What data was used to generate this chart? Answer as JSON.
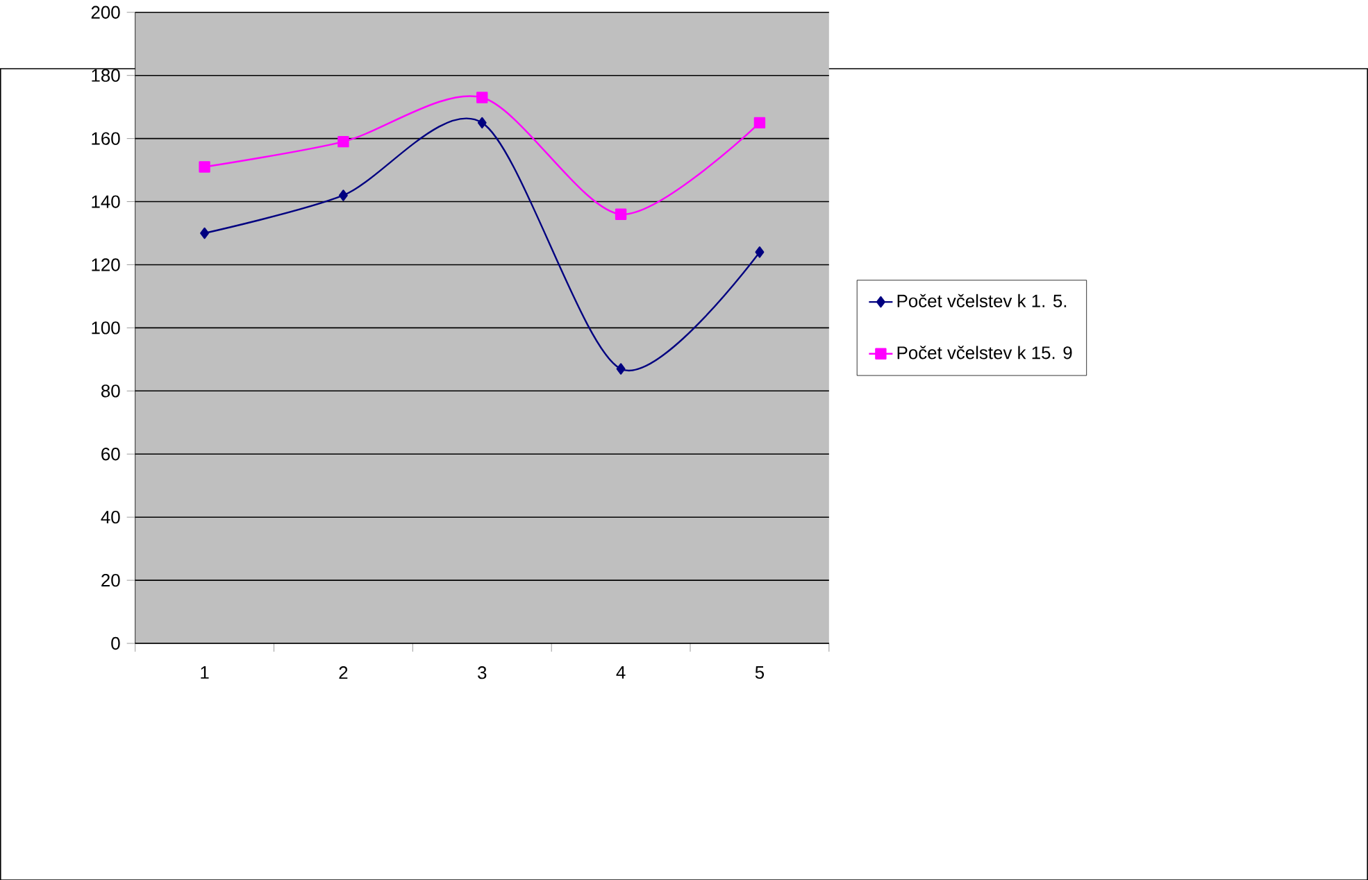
{
  "chart_data": {
    "type": "line",
    "categories": [
      "1",
      "2",
      "3",
      "4",
      "5"
    ],
    "series": [
      {
        "name": "Počet včelstev k 1. 5.",
        "color": "#000080",
        "marker": "diamond",
        "values": [
          130,
          142,
          165,
          87,
          124
        ]
      },
      {
        "name": "Počet včelstev k 15. 9",
        "color": "#ff00ff",
        "marker": "square",
        "values": [
          151,
          159,
          173,
          136,
          165
        ]
      }
    ],
    "ylim": [
      0,
      200
    ],
    "yticks": [
      0,
      20,
      40,
      60,
      80,
      100,
      120,
      140,
      160,
      180,
      200
    ],
    "grid": "y",
    "legend": "right",
    "line_style": "solid"
  }
}
